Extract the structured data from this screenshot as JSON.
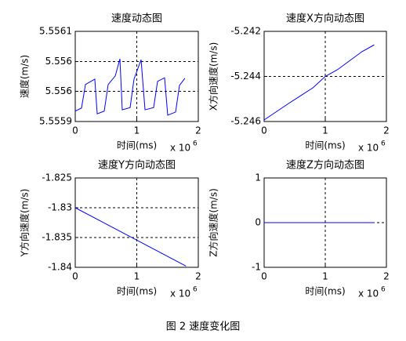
{
  "chart_data": [
    {
      "type": "line",
      "title": "速度动态图",
      "xlabel": "时间(ms)",
      "ylabel": "速度(m/s)",
      "x_multiplier": "x 10",
      "x_multiplier_exponent": "6",
      "color": "#0000ff",
      "grid": true,
      "xlim": [
        0,
        2000000
      ],
      "xticks": [
        {
          "value": 0,
          "label": "0"
        },
        {
          "value": 1000000,
          "label": "1"
        },
        {
          "value": 2000000,
          "label": "2"
        }
      ],
      "ylim": [
        5.5559,
        5.5561
      ],
      "yticks": [
        {
          "value": 5.5559,
          "label": "5.5559"
        },
        {
          "value": 5.555967,
          "label": "5.556"
        },
        {
          "value": 5.556033,
          "label": "5.556"
        },
        {
          "value": 5.5561,
          "label": "5.5561"
        }
      ],
      "x": [
        0,
        102000,
        166000,
        318000,
        357000,
        471000,
        535000,
        650000,
        726000,
        764000,
        892000,
        955000,
        1070000,
        1134000,
        1274000,
        1338000,
        1452000,
        1503000,
        1631000,
        1694000,
        1783000
      ],
      "values": [
        5.555923,
        5.55593,
        5.555982,
        5.555994,
        5.555917,
        5.555923,
        5.555982,
        5.556001,
        5.556039,
        5.555926,
        5.555931,
        5.555994,
        5.556037,
        5.555926,
        5.555931,
        5.555989,
        5.555997,
        5.555914,
        5.555921,
        5.55598,
        5.555996
      ]
    },
    {
      "type": "line",
      "title": "速度X方向动态图",
      "xlabel": "时间(ms)",
      "ylabel": "X方向速度(m/s)",
      "x_multiplier": "x 10",
      "x_multiplier_exponent": "6",
      "color": "#0000ff",
      "grid": true,
      "xlim": [
        0,
        2000000
      ],
      "xticks": [
        {
          "value": 0,
          "label": "0"
        },
        {
          "value": 1000000,
          "label": "1"
        },
        {
          "value": 2000000,
          "label": "2"
        }
      ],
      "ylim": [
        -5.246,
        -5.242
      ],
      "yticks": [
        -5.246,
        -5.244,
        -5.242
      ],
      "x": [
        0,
        400000,
        800000,
        1000000,
        1200000,
        1400000,
        1600000,
        1800000
      ],
      "values": [
        -5.24593,
        -5.2452,
        -5.2445,
        -5.244,
        -5.2437,
        -5.2433,
        -5.2429,
        -5.2426
      ]
    },
    {
      "type": "line",
      "title": "速度Y方向动态图",
      "xlabel": "时间(ms)",
      "ylabel": "Y方向速度(m/s)",
      "x_multiplier": "x 10",
      "x_multiplier_exponent": "6",
      "color": "#0000ff",
      "grid": true,
      "xlim": [
        0,
        2000000
      ],
      "xticks": [
        {
          "value": 0,
          "label": "0"
        },
        {
          "value": 1000000,
          "label": "1"
        },
        {
          "value": 2000000,
          "label": "2"
        }
      ],
      "ylim": [
        -1.84,
        -1.825
      ],
      "yticks": [
        -1.84,
        -1.835,
        -1.83,
        -1.825
      ],
      "x": [
        0,
        900000,
        1800000
      ],
      "values": [
        -1.83,
        -1.8349,
        -1.8398
      ]
    },
    {
      "type": "line",
      "title": "速度Z方向动态图",
      "xlabel": "时间(ms)",
      "ylabel": "Z方向速度(m/s)",
      "x_multiplier": "x 10",
      "x_multiplier_exponent": "6",
      "color": "#0000ff",
      "grid": true,
      "xlim": [
        0,
        2000000
      ],
      "xticks": [
        {
          "value": 0,
          "label": "0"
        },
        {
          "value": 1000000,
          "label": "1"
        },
        {
          "value": 2000000,
          "label": "2"
        }
      ],
      "ylim": [
        -1,
        1
      ],
      "yticks": [
        -1,
        0,
        1
      ],
      "x": [
        0,
        1800000
      ],
      "values": [
        0,
        0
      ]
    }
  ],
  "caption": "图 2 速度变化图"
}
